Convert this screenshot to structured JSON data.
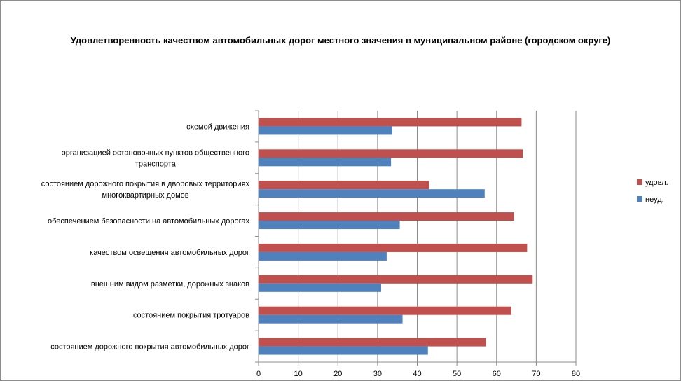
{
  "chart_data": {
    "type": "bar",
    "orientation": "horizontal",
    "title": "Удовлетворенность качеством автомобильных дорог местного значения в муниципальном районе (городском округе)",
    "xlabel": "",
    "ylabel": "",
    "xlim": [
      0,
      80
    ],
    "x_ticks": [
      "0",
      "10",
      "20",
      "30",
      "40",
      "50",
      "60",
      "70",
      "80"
    ],
    "grid": "vertical",
    "legend_position": "right",
    "categories": [
      [
        "схемой движения"
      ],
      [
        "организацией остановочных пунктов общественного",
        "транспорта"
      ],
      [
        "состоянием дорожного покрытия в дворовых территориях",
        "многоквартирных домов"
      ],
      [
        "обеспечением  безопасности на автомобильных дорогах"
      ],
      [
        "качеством освещения  автомобильных дорог"
      ],
      [
        "внешним  видом разметки, дорожных знаков"
      ],
      [
        "состоянием покрытия тротуаров"
      ],
      [
        "состоянием дорожного покрытия автомобильных дорог"
      ]
    ],
    "series": [
      {
        "name": "удовл.",
        "color": "#c0504d",
        "values": [
          66.3,
          66.6,
          43.0,
          64.4,
          67.7,
          69.1,
          63.7,
          57.3
        ]
      },
      {
        "name": "неуд.",
        "color": "#4f81bd",
        "values": [
          33.7,
          33.4,
          57.0,
          35.6,
          32.3,
          30.9,
          36.3,
          42.7
        ]
      }
    ]
  }
}
